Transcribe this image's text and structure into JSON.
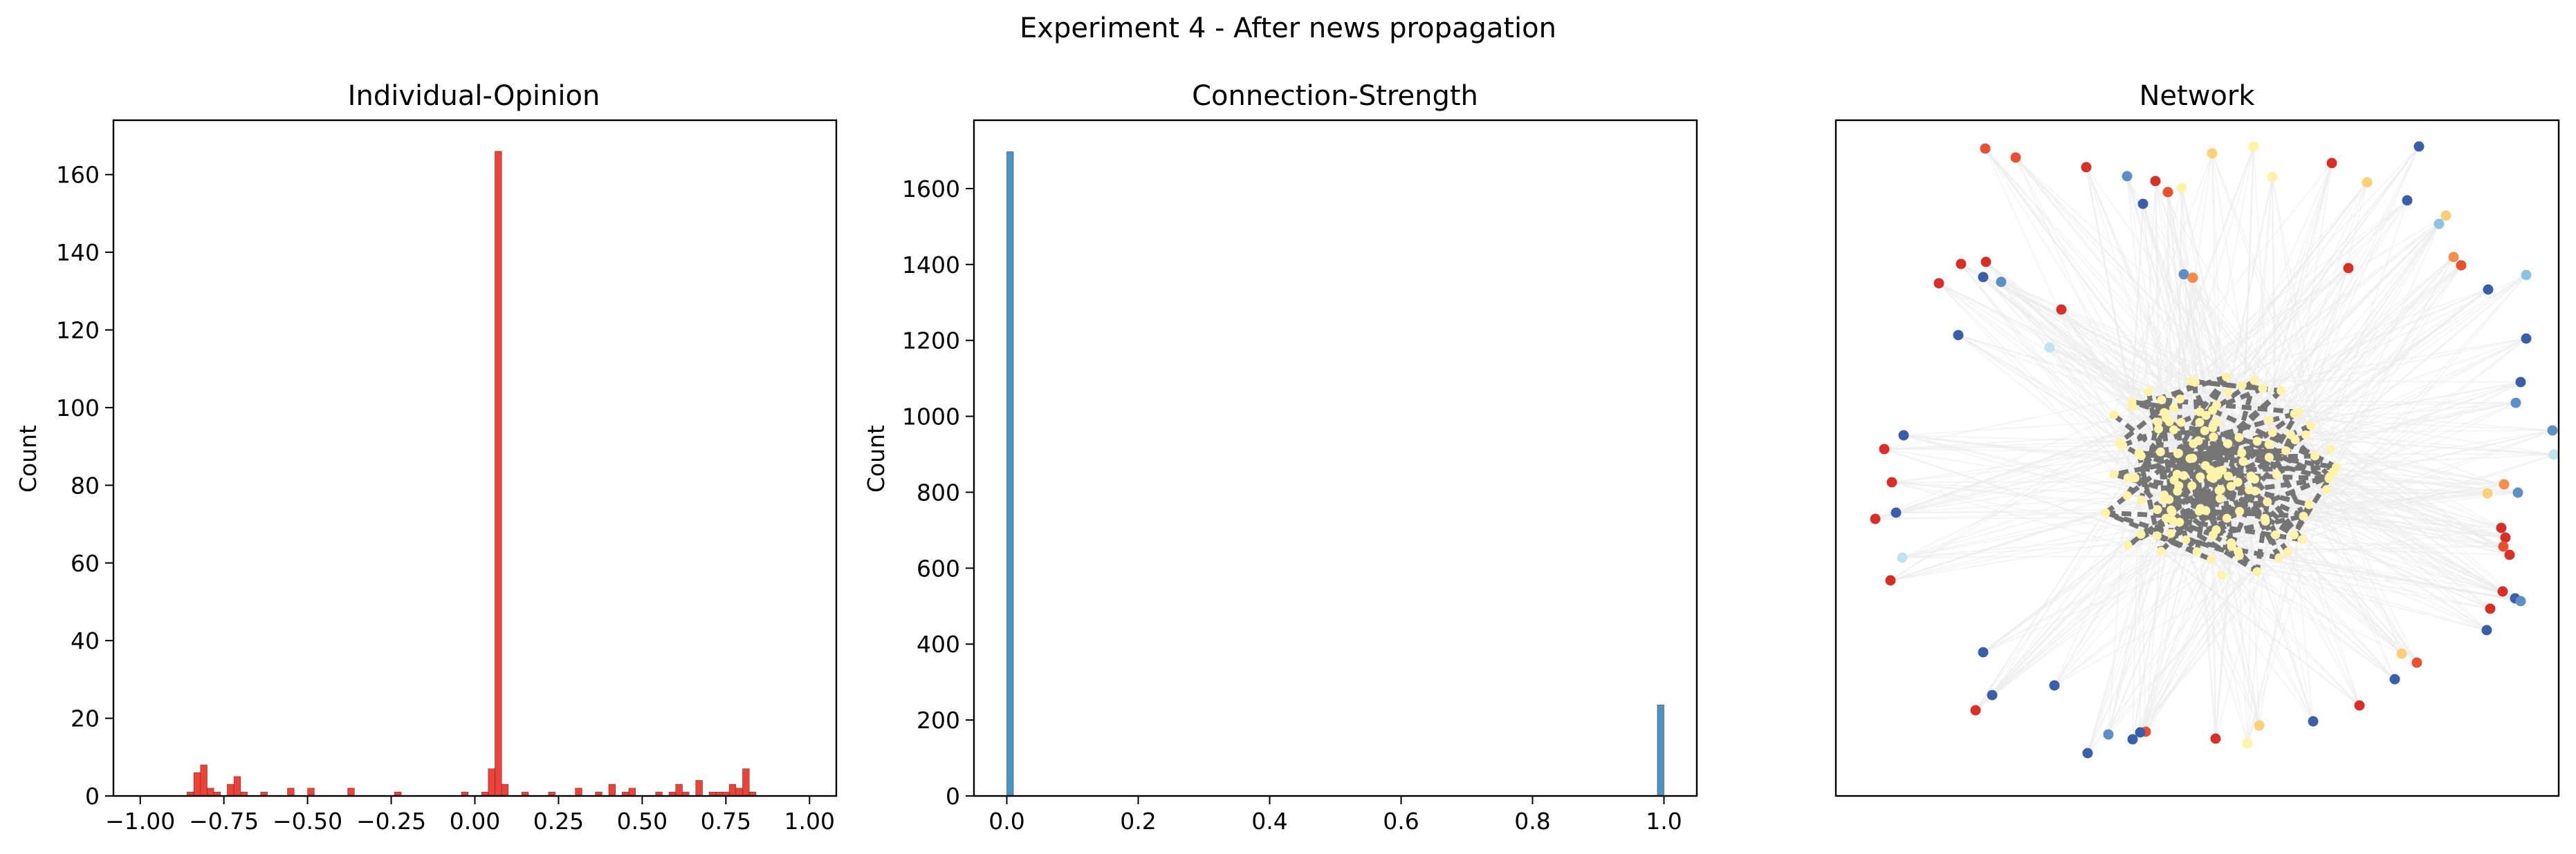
{
  "figure": {
    "suptitle": "Experiment 4 - After news propagation"
  },
  "chart_data": [
    {
      "type": "histogram",
      "title": "Individual-Opinion",
      "xlabel": "",
      "ylabel": "Count",
      "xlim": [
        -1.08,
        1.08
      ],
      "ylim": [
        0,
        174
      ],
      "xticks": [
        -1.0,
        -0.75,
        -0.5,
        -0.25,
        0.0,
        0.25,
        0.5,
        0.75,
        1.0
      ],
      "xtick_labels": [
        "−1.00",
        "−0.75",
        "−0.50",
        "−0.25",
        "0.00",
        "0.25",
        "0.50",
        "0.75",
        "1.00"
      ],
      "yticks": [
        0,
        20,
        40,
        60,
        80,
        100,
        120,
        140,
        160
      ],
      "ytick_labels": [
        "0",
        "20",
        "40",
        "60",
        "80",
        "100",
        "120",
        "140",
        "160"
      ],
      "bar_color": "#e8392f",
      "bins": [
        {
          "x0": -0.86,
          "x1": -0.84,
          "count": 1
        },
        {
          "x0": -0.84,
          "x1": -0.82,
          "count": 6
        },
        {
          "x0": -0.82,
          "x1": -0.8,
          "count": 8
        },
        {
          "x0": -0.8,
          "x1": -0.78,
          "count": 2
        },
        {
          "x0": -0.78,
          "x1": -0.76,
          "count": 1
        },
        {
          "x0": -0.74,
          "x1": -0.72,
          "count": 3
        },
        {
          "x0": -0.72,
          "x1": -0.7,
          "count": 5
        },
        {
          "x0": -0.7,
          "x1": -0.68,
          "count": 1
        },
        {
          "x0": -0.64,
          "x1": -0.62,
          "count": 1
        },
        {
          "x0": -0.56,
          "x1": -0.54,
          "count": 2
        },
        {
          "x0": -0.5,
          "x1": -0.48,
          "count": 2
        },
        {
          "x0": -0.38,
          "x1": -0.36,
          "count": 2
        },
        {
          "x0": -0.24,
          "x1": -0.22,
          "count": 1
        },
        {
          "x0": -0.04,
          "x1": -0.02,
          "count": 1
        },
        {
          "x0": 0.02,
          "x1": 0.04,
          "count": 1
        },
        {
          "x0": 0.04,
          "x1": 0.06,
          "count": 7
        },
        {
          "x0": 0.06,
          "x1": 0.08,
          "count": 166
        },
        {
          "x0": 0.08,
          "x1": 0.1,
          "count": 3
        },
        {
          "x0": 0.14,
          "x1": 0.16,
          "count": 1
        },
        {
          "x0": 0.22,
          "x1": 0.24,
          "count": 1
        },
        {
          "x0": 0.3,
          "x1": 0.32,
          "count": 2
        },
        {
          "x0": 0.36,
          "x1": 0.38,
          "count": 1
        },
        {
          "x0": 0.4,
          "x1": 0.42,
          "count": 3
        },
        {
          "x0": 0.44,
          "x1": 0.46,
          "count": 1
        },
        {
          "x0": 0.46,
          "x1": 0.48,
          "count": 2
        },
        {
          "x0": 0.54,
          "x1": 0.56,
          "count": 1
        },
        {
          "x0": 0.58,
          "x1": 0.6,
          "count": 1
        },
        {
          "x0": 0.6,
          "x1": 0.62,
          "count": 3
        },
        {
          "x0": 0.62,
          "x1": 0.64,
          "count": 1
        },
        {
          "x0": 0.66,
          "x1": 0.68,
          "count": 4
        },
        {
          "x0": 0.7,
          "x1": 0.72,
          "count": 1
        },
        {
          "x0": 0.72,
          "x1": 0.74,
          "count": 1
        },
        {
          "x0": 0.74,
          "x1": 0.76,
          "count": 1
        },
        {
          "x0": 0.76,
          "x1": 0.78,
          "count": 3
        },
        {
          "x0": 0.78,
          "x1": 0.8,
          "count": 2
        },
        {
          "x0": 0.8,
          "x1": 0.82,
          "count": 7
        },
        {
          "x0": 0.82,
          "x1": 0.84,
          "count": 1
        }
      ]
    },
    {
      "type": "histogram",
      "title": "Connection-Strength",
      "xlabel": "",
      "ylabel": "Count",
      "xlim": [
        -0.05,
        1.05
      ],
      "ylim": [
        0,
        1780
      ],
      "xticks": [
        0.0,
        0.2,
        0.4,
        0.6,
        0.8,
        1.0
      ],
      "xtick_labels": [
        "0.0",
        "0.2",
        "0.4",
        "0.6",
        "0.8",
        "1.0"
      ],
      "yticks": [
        0,
        200,
        400,
        600,
        800,
        1000,
        1200,
        1400,
        1600
      ],
      "ytick_labels": [
        "0",
        "200",
        "400",
        "600",
        "800",
        "1000",
        "1200",
        "1400",
        "1600"
      ],
      "bar_color": "#3b8fc4",
      "bins": [
        {
          "x0": 0.0,
          "x1": 0.01,
          "count": 1697
        },
        {
          "x0": 0.99,
          "x1": 1.0,
          "count": 240
        }
      ]
    },
    {
      "type": "network",
      "title": "Network",
      "frame_ticks": false,
      "edge_colors": {
        "strong": "#757575",
        "weak": "#ececec"
      },
      "node_palette": [
        "#d62f27",
        "#e8502f",
        "#f68c4a",
        "#fbd077",
        "#fff3aa",
        "#bfe3ef",
        "#8ec2de",
        "#5b8fc5",
        "#3a5ea8"
      ]
    }
  ]
}
